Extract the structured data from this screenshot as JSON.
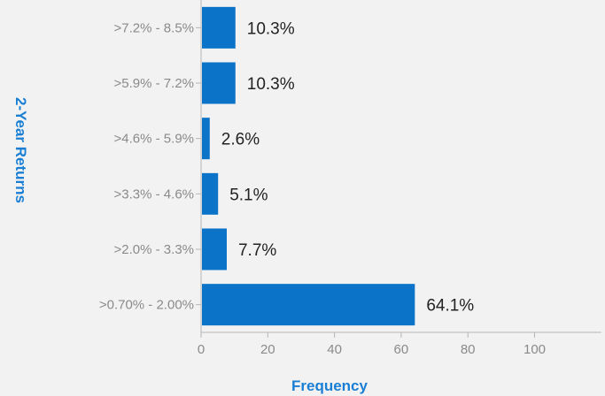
{
  "chart_data": {
    "type": "bar",
    "orientation": "horizontal",
    "title": "",
    "xlabel": "Frequency",
    "ylabel": "2-Year Returns",
    "categories": [
      ">7.2% - 8.5%",
      ">5.9% - 7.2%",
      ">4.6% - 5.9%",
      ">3.3% - 4.6%",
      ">2.0% - 3.3%",
      ">0.70% - 2.00%"
    ],
    "values": [
      10.3,
      10.3,
      2.6,
      5.1,
      7.7,
      64.1
    ],
    "data_labels": [
      "10.3%",
      "10.3%",
      "2.6%",
      "5.1%",
      "7.7%",
      "64.1%"
    ],
    "xlim": [
      0,
      120
    ],
    "xticks": [
      0,
      20,
      40,
      60,
      80,
      100
    ],
    "xtick_labels": [
      "0",
      "20",
      "40",
      "60",
      "80",
      "100"
    ],
    "grid": false,
    "legend": "none",
    "colors": {
      "bar": "#0b74c8",
      "axis_title": "#1a7fd4",
      "axis_line": "#b5b5b5",
      "background": "#f2f2f2"
    }
  }
}
